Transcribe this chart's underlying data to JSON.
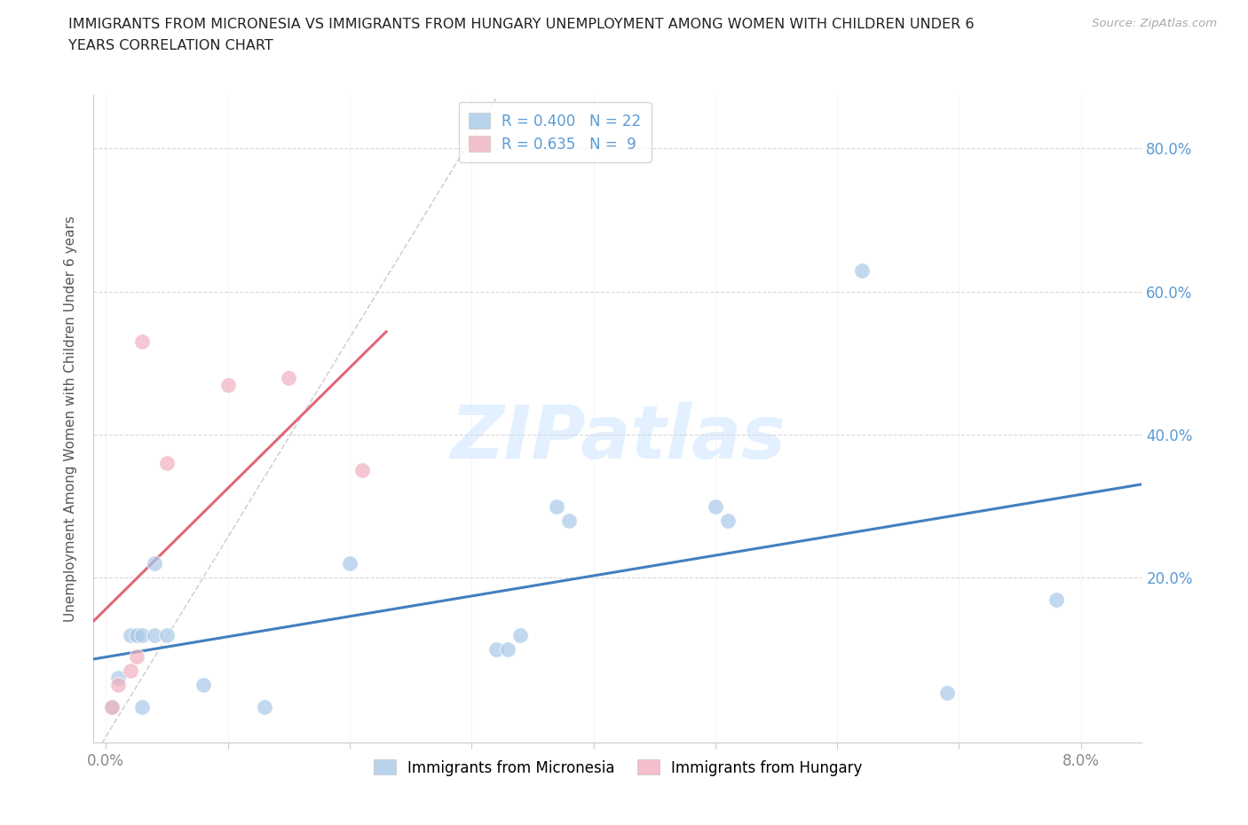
{
  "title_line1": "IMMIGRANTS FROM MICRONESIA VS IMMIGRANTS FROM HUNGARY UNEMPLOYMENT AMONG WOMEN WITH CHILDREN UNDER 6",
  "title_line2": "YEARS CORRELATION CHART",
  "source": "Source: ZipAtlas.com",
  "ylabel": "Unemployment Among Women with Children Under 6 years",
  "xlim": [
    -0.001,
    0.085
  ],
  "ylim": [
    -0.03,
    0.875
  ],
  "xtick_vals": [
    0.0,
    0.01,
    0.02,
    0.03,
    0.04,
    0.05,
    0.06,
    0.07,
    0.08
  ],
  "ytick_vals": [
    0.0,
    0.2,
    0.4,
    0.6,
    0.8
  ],
  "ytick_labels_right": [
    "",
    "20.0%",
    "40.0%",
    "60.0%",
    "80.0%"
  ],
  "micronesia_x": [
    0.0005,
    0.001,
    0.002,
    0.0025,
    0.003,
    0.003,
    0.004,
    0.004,
    0.005,
    0.008,
    0.013,
    0.02,
    0.032,
    0.033,
    0.034,
    0.037,
    0.038,
    0.05,
    0.051,
    0.062,
    0.069,
    0.078
  ],
  "micronesia_y": [
    0.02,
    0.06,
    0.12,
    0.12,
    0.12,
    0.02,
    0.12,
    0.22,
    0.12,
    0.05,
    0.02,
    0.22,
    0.1,
    0.1,
    0.12,
    0.3,
    0.28,
    0.3,
    0.28,
    0.63,
    0.04,
    0.17
  ],
  "hungary_x": [
    0.0005,
    0.001,
    0.002,
    0.0025,
    0.003,
    0.005,
    0.01,
    0.015,
    0.021
  ],
  "hungary_y": [
    0.02,
    0.05,
    0.07,
    0.09,
    0.53,
    0.36,
    0.47,
    0.48,
    0.35
  ],
  "micronesia_r": 0.4,
  "micronesia_n": 22,
  "hungary_r": 0.635,
  "hungary_n": 9,
  "blue_scatter": "#a8c8e8",
  "pink_scatter": "#f0b0c0",
  "blue_line": "#4080c0",
  "pink_line": "#e06878",
  "grey_dash_color": "#c8c8c8",
  "right_tick_color": "#5b9bd5",
  "grid_color": "#d8d8d8",
  "spine_color": "#cccccc",
  "tick_label_color": "#888888",
  "watermark_text": "ZIPatlas",
  "watermark_color": "#ddeeff"
}
